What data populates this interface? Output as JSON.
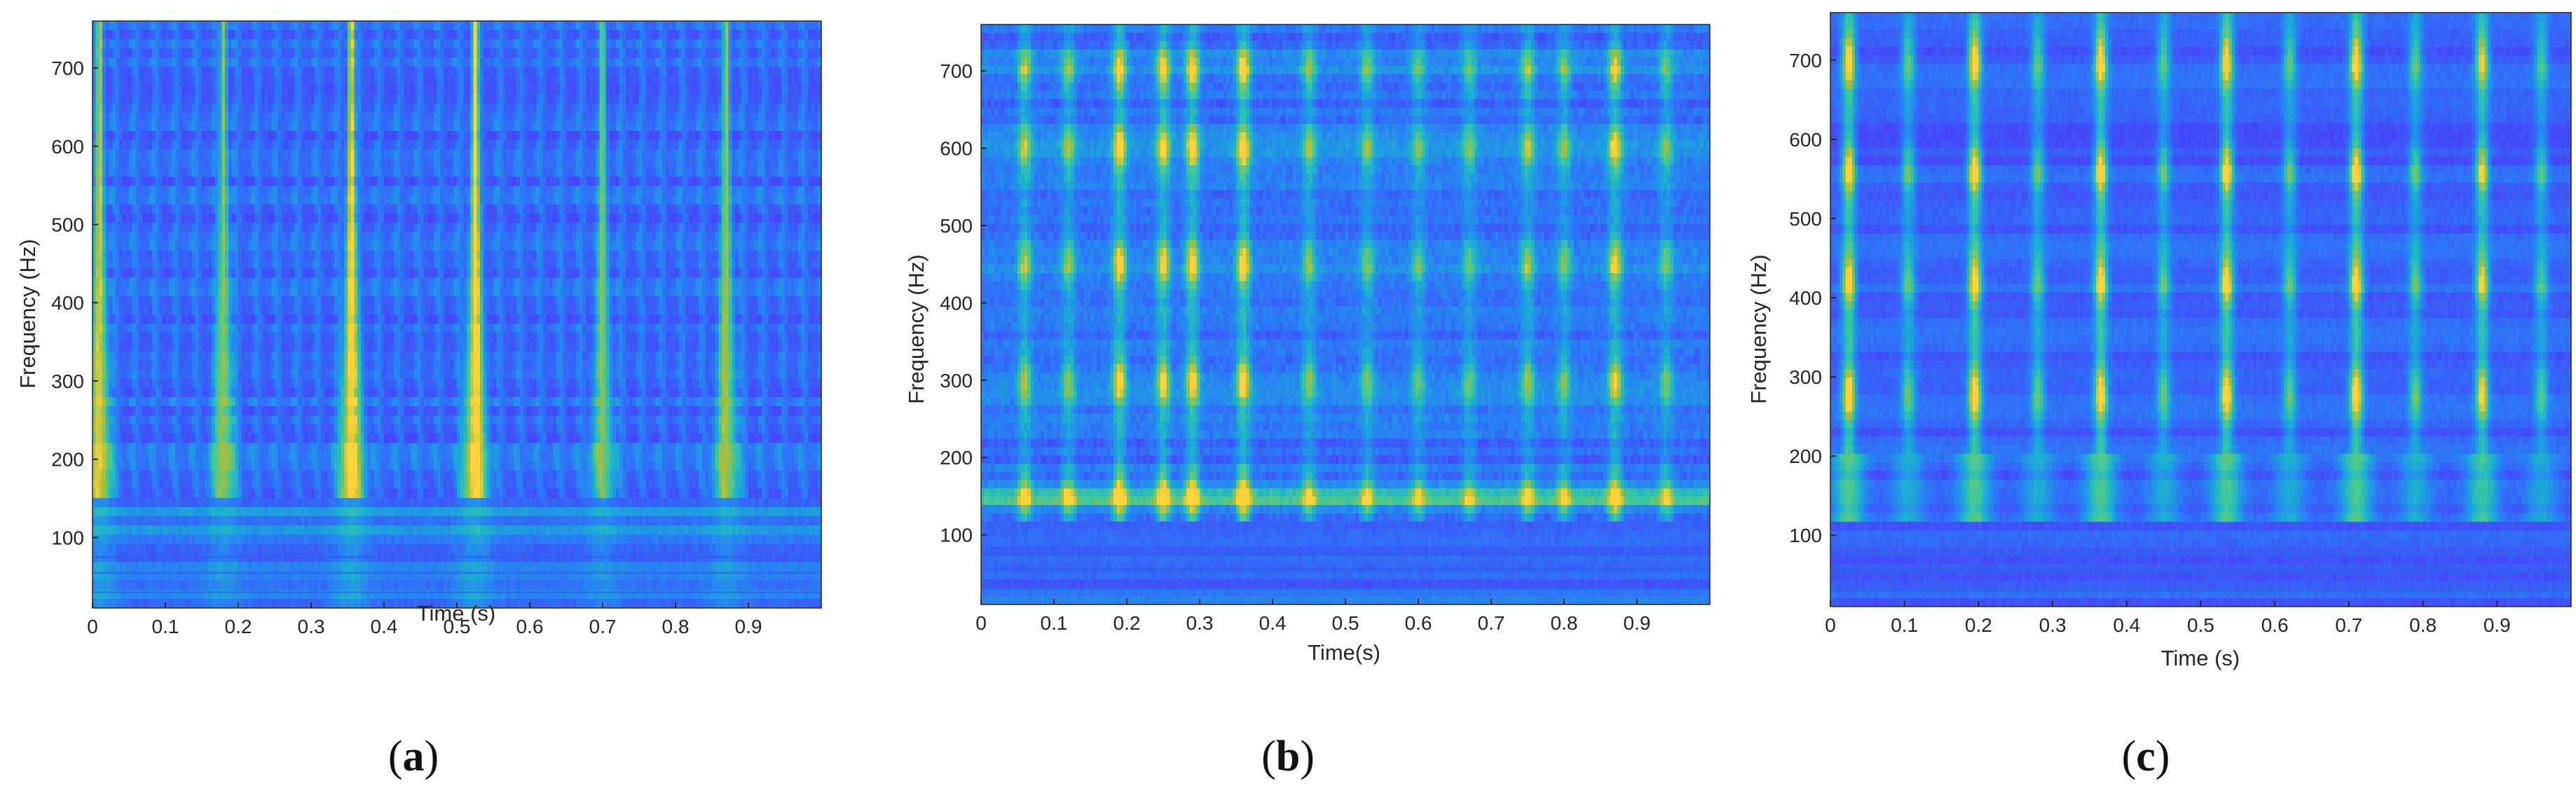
{
  "figure": {
    "captions": [
      {
        "open": "(",
        "letter": "a",
        "close": ")"
      },
      {
        "open": "(",
        "letter": "b",
        "close": ")"
      },
      {
        "open": "(",
        "letter": "c",
        "close": ")"
      }
    ]
  },
  "chart_data": [
    {
      "type": "heatmap",
      "id": "a",
      "xlabel": "Time (s)",
      "ylabel": "Frequency (Hz)",
      "xlim": [
        0,
        1
      ],
      "ylim": [
        10,
        760
      ],
      "xticks": [
        0,
        0.1,
        0.2,
        0.3,
        0.4,
        0.5,
        0.6,
        0.7,
        0.8,
        0.9
      ],
      "xtick_labels": [
        "0",
        "0.1",
        "0.2",
        "0.3",
        "0.4",
        "0.5",
        "0.6",
        "0.7",
        "0.8",
        "0.9"
      ],
      "yticks": [
        100,
        200,
        300,
        400,
        500,
        600,
        700
      ],
      "ytick_labels": [
        "100",
        "200",
        "300",
        "400",
        "500",
        "600",
        "700"
      ],
      "colormap": [
        "#3e26a8",
        "#4743f8",
        "#2a7ef6",
        "#1baed3",
        "#3fc99b",
        "#a5be3c",
        "#fdd33b"
      ],
      "impulse_times": [
        0.01,
        0.18,
        0.355,
        0.525,
        0.7,
        0.87
      ],
      "impulse_strength": [
        0.85,
        0.7,
        1.0,
        1.0,
        0.6,
        0.7
      ]
    },
    {
      "type": "heatmap",
      "id": "b",
      "xlabel": "Time(s)",
      "ylabel": "Frequency (Hz)",
      "xlim": [
        0,
        1
      ],
      "ylim": [
        10,
        760
      ],
      "xticks": [
        0,
        0.1,
        0.2,
        0.3,
        0.4,
        0.5,
        0.6,
        0.7,
        0.8,
        0.9
      ],
      "xtick_labels": [
        "0",
        "0.1",
        "0.2",
        "0.3",
        "0.4",
        "0.5",
        "0.6",
        "0.7",
        "0.8",
        "0.9"
      ],
      "yticks": [
        100,
        200,
        300,
        400,
        500,
        600,
        700
      ],
      "ytick_labels": [
        "100",
        "200",
        "300",
        "400",
        "500",
        "600",
        "700"
      ],
      "colormap": [
        "#3e26a8",
        "#4743f8",
        "#2a7ef6",
        "#1baed3",
        "#3fc99b",
        "#a5be3c",
        "#fdd33b"
      ],
      "impulse_times": [
        0.06,
        0.12,
        0.19,
        0.25,
        0.29,
        0.36,
        0.45,
        0.53,
        0.6,
        0.67,
        0.75,
        0.8,
        0.87,
        0.94
      ],
      "impulse_strength": [
        0.7,
        0.6,
        0.95,
        0.9,
        0.95,
        1.0,
        0.6,
        0.55,
        0.5,
        0.5,
        0.65,
        0.55,
        0.85,
        0.5
      ],
      "bands_hz": [
        150,
        300,
        450,
        600,
        700
      ]
    },
    {
      "type": "heatmap",
      "id": "c",
      "xlabel": "Time (s)",
      "ylabel": "Frequency (Hz)",
      "xlim": [
        0,
        1
      ],
      "ylim": [
        10,
        760
      ],
      "xticks": [
        0,
        0.1,
        0.2,
        0.3,
        0.4,
        0.5,
        0.6,
        0.7,
        0.8,
        0.9
      ],
      "xtick_labels": [
        "0",
        "0.1",
        "0.2",
        "0.3",
        "0.4",
        "0.5",
        "0.6",
        "0.7",
        "0.8",
        "0.9"
      ],
      "yticks": [
        100,
        200,
        300,
        400,
        500,
        600,
        700
      ],
      "ytick_labels": [
        "100",
        "200",
        "300",
        "400",
        "500",
        "600",
        "700"
      ],
      "colormap": [
        "#3e26a8",
        "#4743f8",
        "#2a7ef6",
        "#1baed3",
        "#3fc99b",
        "#a5be3c",
        "#fdd33b"
      ],
      "impulse_times": [
        0.025,
        0.105,
        0.195,
        0.28,
        0.365,
        0.45,
        0.535,
        0.62,
        0.71,
        0.79,
        0.88,
        0.96
      ],
      "impulse_strength": [
        1.0,
        0.55,
        1.0,
        0.55,
        1.0,
        0.55,
        1.0,
        0.55,
        1.0,
        0.55,
        0.9,
        0.5
      ],
      "bands_hz": [
        140,
        280,
        420,
        560,
        700
      ]
    }
  ]
}
